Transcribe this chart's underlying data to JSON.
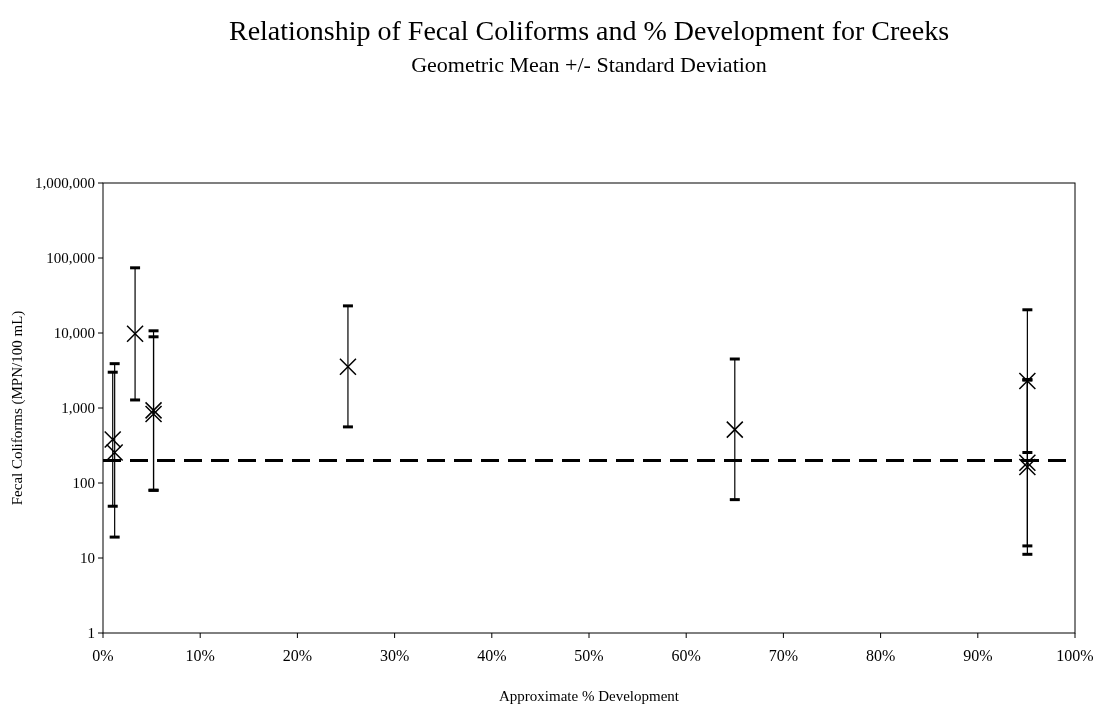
{
  "chart_data": {
    "type": "scatter",
    "title": "Relationship of Fecal Coliforms and % Development for Creeks",
    "subtitle": "Geometric Mean +/- Standard Deviation",
    "xlabel": "Approximate % Development",
    "ylabel": "Fecal Coliforms (MPN/100 mL)",
    "x": [
      1,
      1.2,
      3.3,
      5.2,
      5.2,
      25.2,
      65,
      95.1,
      95.1,
      95.1
    ],
    "values": [
      380,
      255,
      9800,
      930,
      830,
      3550,
      515,
      2290,
      186,
      163
    ],
    "errors": [
      [
        49,
        3000
      ],
      [
        19,
        3900
      ],
      [
        1280,
        74000
      ],
      [
        80,
        10700
      ],
      [
        80,
        8900
      ],
      [
        560,
        23000
      ],
      [
        60,
        4500
      ],
      [
        255,
        20400
      ],
      [
        14.5,
        2400
      ],
      [
        11.2,
        2350
      ]
    ],
    "color": "#000000",
    "marker": "cross",
    "log": "y",
    "grid": false,
    "xlim": [
      0,
      100
    ],
    "xticks": [
      {
        "value": 0,
        "label": "0%"
      },
      {
        "value": 10,
        "label": "10%"
      },
      {
        "value": 20,
        "label": "20%"
      },
      {
        "value": 30,
        "label": "30%"
      },
      {
        "value": 40,
        "label": "40%"
      },
      {
        "value": 50,
        "label": "50%"
      },
      {
        "value": 60,
        "label": "60%"
      },
      {
        "value": 70,
        "label": "70%"
      },
      {
        "value": 80,
        "label": "80%"
      },
      {
        "value": 90,
        "label": "90%"
      },
      {
        "value": 100,
        "label": "100%"
      }
    ],
    "ylim": [
      1,
      1000000
    ],
    "yticks": [
      1,
      10,
      100,
      {
        "value": 1000,
        "label": "1,000"
      },
      {
        "value": 10000,
        "label": "10,000"
      },
      {
        "value": 100000,
        "label": "100,000"
      },
      {
        "value": 1000000,
        "label": "1,000,000"
      }
    ],
    "ref_lines": [
      {
        "axis": "y",
        "value": 200,
        "color": "#000000",
        "line_style": "dashed"
      }
    ]
  }
}
